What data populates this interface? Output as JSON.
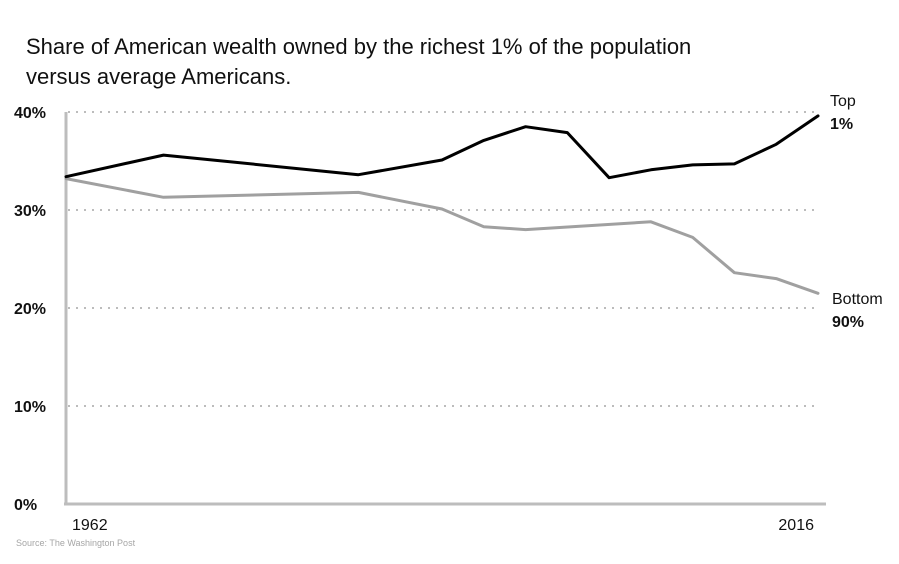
{
  "chart_data": {
    "type": "line",
    "title": "Share of American wealth owned by the richest 1% of the population versus average Americans.",
    "source": "Source: The Washington Post",
    "xlabel": "",
    "ylabel": "",
    "x_range": [
      1962,
      2016
    ],
    "x_tick_labels": [
      "1962",
      "2016"
    ],
    "ylim": [
      0,
      40
    ],
    "y_ticks": [
      0,
      10,
      20,
      30,
      40
    ],
    "y_tick_labels": [
      "0%",
      "10%",
      "20%",
      "30%",
      "40%"
    ],
    "grid": "horizontal dotted",
    "series": [
      {
        "label_line1": "Top",
        "label_line2": "1%",
        "color": "#000000",
        "points": [
          [
            1962,
            33.4
          ],
          [
            1969,
            35.6
          ],
          [
            1983,
            33.6
          ],
          [
            1989,
            35.1
          ],
          [
            1992,
            37.1
          ],
          [
            1995,
            38.5
          ],
          [
            1998,
            37.9
          ],
          [
            2001,
            33.3
          ],
          [
            2004,
            34.1
          ],
          [
            2007,
            34.6
          ],
          [
            2010,
            34.7
          ],
          [
            2013,
            36.7
          ],
          [
            2016,
            39.6
          ]
        ]
      },
      {
        "label_line1": "Bottom",
        "label_line2": "90%",
        "color": "#a0a0a0",
        "points": [
          [
            1962,
            33.2
          ],
          [
            1969,
            31.3
          ],
          [
            1983,
            31.8
          ],
          [
            1989,
            30.1
          ],
          [
            1992,
            28.3
          ],
          [
            1995,
            28.0
          ],
          [
            2004,
            28.8
          ],
          [
            2007,
            27.2
          ],
          [
            2010,
            23.6
          ],
          [
            2013,
            23.0
          ],
          [
            2016,
            21.5
          ]
        ]
      }
    ]
  }
}
